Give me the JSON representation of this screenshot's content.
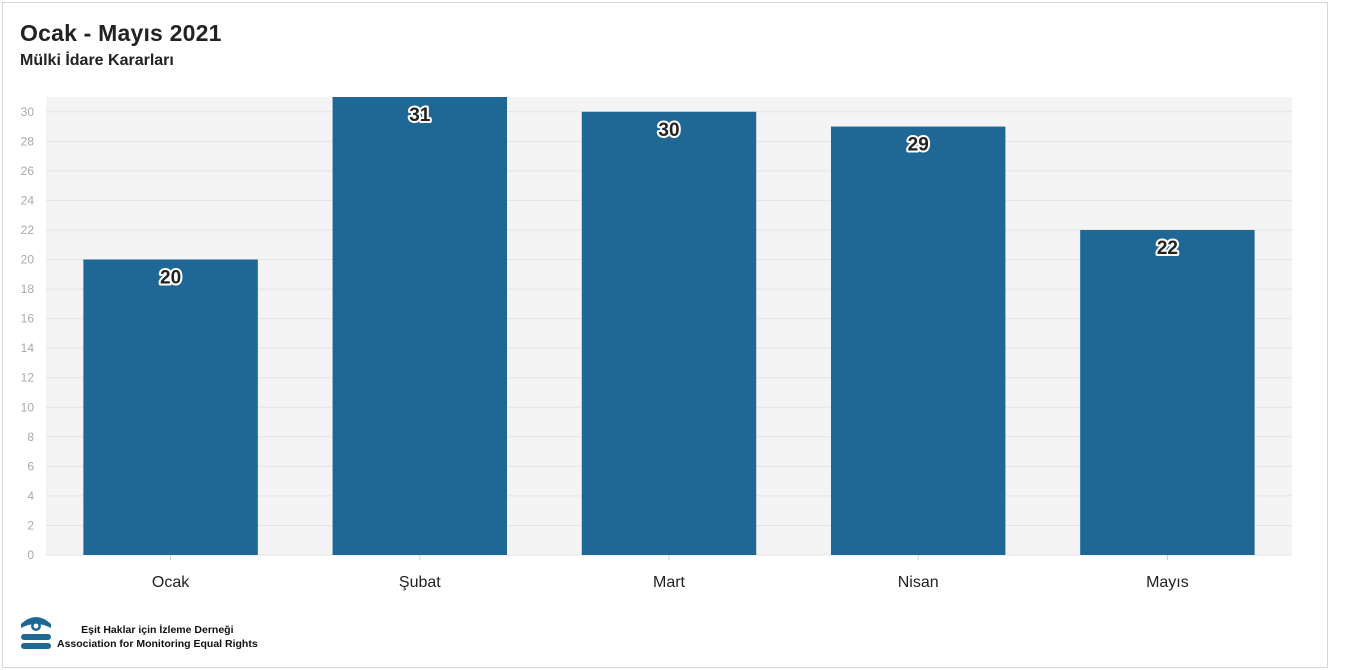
{
  "header": {
    "title": "Ocak - Mayıs 2021",
    "subtitle": "Mülki İdare Kararları"
  },
  "footer": {
    "org_tr": "Eşit Haklar için İzleme Derneği",
    "org_en": "Association for Monitoring Equal Rights",
    "logo_icon": "esid-logo-icon"
  },
  "colors": {
    "bar": "#1f6896",
    "plot_bg": "#f4f4f4",
    "grid": "#e4e4e4"
  },
  "chart_data": {
    "type": "bar",
    "title": "Ocak - Mayıs 2021",
    "subtitle": "Mülki İdare Kararları",
    "categories": [
      "Ocak",
      "Şubat",
      "Mart",
      "Nisan",
      "Mayıs"
    ],
    "values": [
      20,
      31,
      30,
      29,
      22
    ],
    "data_labels": [
      "20",
      "31",
      "30",
      "29",
      "22"
    ],
    "xlabel": "",
    "ylabel": "",
    "ylim": [
      0,
      31
    ],
    "yticks": [
      0,
      2,
      4,
      6,
      8,
      10,
      12,
      14,
      16,
      18,
      20,
      22,
      24,
      26,
      28,
      30
    ],
    "grid": true,
    "legend": "none"
  }
}
